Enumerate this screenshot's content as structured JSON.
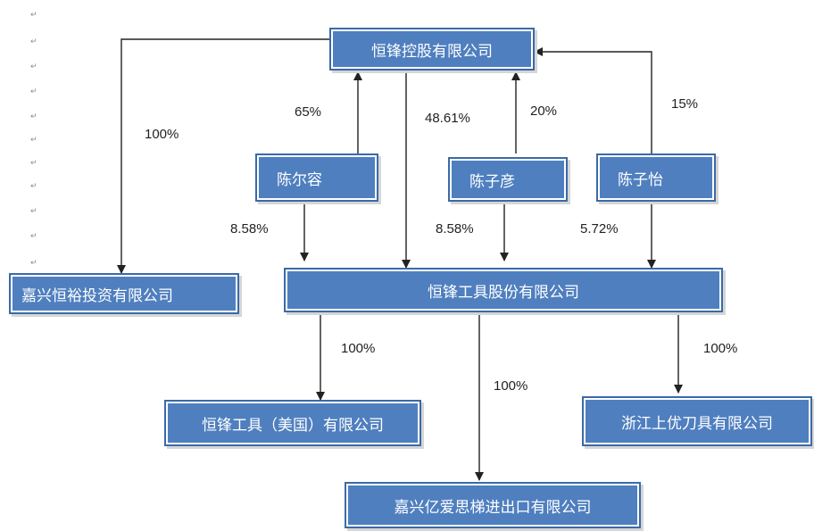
{
  "nodes": {
    "hengfeng_holding": "恒锋控股有限公司",
    "chen_errong": "陈尔容",
    "chen_ziyan": "陈子彦",
    "chen_ziyi": "陈子怡",
    "jiaxing_hengyu": "嘉兴恒裕投资有限公司",
    "hengfeng_tools": "恒锋工具股份有限公司",
    "hengfeng_usa": "恒锋工具（美国）有限公司",
    "zhejiang_shangyou": "浙江上优刀具有限公司",
    "jiaxing_yiaisi": "嘉兴亿爱思梯进出口有限公司"
  },
  "labels": {
    "holding_to_hengyu": "100%",
    "errong_to_holding": "65%",
    "holding_to_tools": "48.61%",
    "ziyan_to_holding": "20%",
    "ziyi_to_holding": "15%",
    "errong_to_tools": "8.58%",
    "ziyan_to_tools": "8.58%",
    "ziyi_to_tools": "5.72%",
    "tools_to_usa": "100%",
    "tools_to_yiaisi": "100%",
    "tools_to_shangyou": "100%"
  },
  "paragraph_mark": "↵"
}
